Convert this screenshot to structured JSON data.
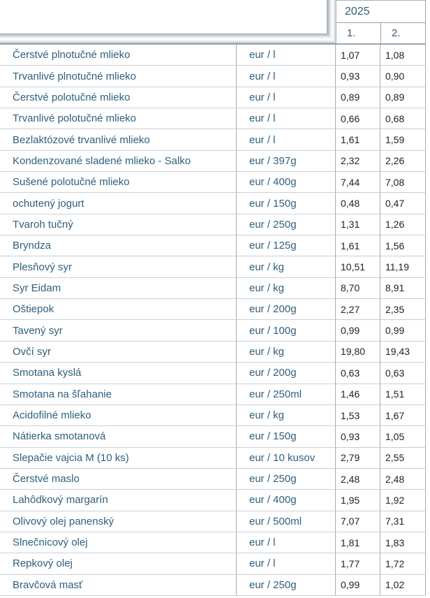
{
  "table": {
    "year_header": "2025",
    "month_headers": [
      "1.",
      "2."
    ],
    "rows": [
      {
        "name": "Čerstvé plnotučné mlieko",
        "unit": "eur / l",
        "m1": "1,07",
        "m2": "1,08"
      },
      {
        "name": "Trvanlivé plnotučné mlieko",
        "unit": "eur / l",
        "m1": "0,93",
        "m2": "0,90"
      },
      {
        "name": "Čerstvé polotučné mlieko",
        "unit": "eur / l",
        "m1": "0,89",
        "m2": "0,89"
      },
      {
        "name": "Trvanlivé polotučné mlieko",
        "unit": "eur / l",
        "m1": "0,66",
        "m2": "0,68"
      },
      {
        "name": "Bezlaktózové trvanlivé mlieko",
        "unit": "eur / l",
        "m1": "1,61",
        "m2": "1,59"
      },
      {
        "name": "Kondenzované sladené mlieko - Salko",
        "unit": "eur / 397g",
        "m1": "2,32",
        "m2": "2,26"
      },
      {
        "name": "Sušené polotučné mlieko",
        "unit": "eur / 400g",
        "m1": "7,44",
        "m2": "7,08"
      },
      {
        "name": "ochutený jogurt",
        "unit": "eur / 150g",
        "m1": "0,48",
        "m2": "0,47"
      },
      {
        "name": "Tvaroh tučný",
        "unit": "eur / 250g",
        "m1": "1,31",
        "m2": "1,26"
      },
      {
        "name": "Bryndza",
        "unit": "eur / 125g",
        "m1": "1,61",
        "m2": "1,56"
      },
      {
        "name": "Plesňový syr",
        "unit": "eur / kg",
        "m1": "10,51",
        "m2": "11,19"
      },
      {
        "name": "Syr Eidam",
        "unit": "eur / kg",
        "m1": "8,70",
        "m2": "8,91"
      },
      {
        "name": "Oštiepok",
        "unit": "eur / 200g",
        "m1": "2,27",
        "m2": "2,35"
      },
      {
        "name": "Tavený syr",
        "unit": "eur / 100g",
        "m1": "0,99",
        "m2": "0,99"
      },
      {
        "name": "Ovčí syr",
        "unit": "eur / kg",
        "m1": "19,80",
        "m2": "19,43"
      },
      {
        "name": "Smotana kyslá",
        "unit": "eur / 200g",
        "m1": "0,63",
        "m2": "0,63"
      },
      {
        "name": "Smotana na šľahanie",
        "unit": "eur / 250ml",
        "m1": "1,46",
        "m2": "1,51"
      },
      {
        "name": "Acidofilné mlieko",
        "unit": "eur / kg",
        "m1": "1,53",
        "m2": "1,67"
      },
      {
        "name": "Nátierka smotanová",
        "unit": "eur / 150g",
        "m1": "0,93",
        "m2": "1,05"
      },
      {
        "name": "Slepačie vajcia M (10 ks)",
        "unit": "eur / 10 kusov",
        "m1": "2,79",
        "m2": "2,55"
      },
      {
        "name": "Čerstvé maslo",
        "unit": "eur / 250g",
        "m1": "2,48",
        "m2": "2,48"
      },
      {
        "name": "Lahôdkový margarín",
        "unit": "eur / 400g",
        "m1": "1,95",
        "m2": "1,92"
      },
      {
        "name": "Olivový olej panenský",
        "unit": "eur / 500ml",
        "m1": "7,07",
        "m2": "7,31"
      },
      {
        "name": "Slnečnicový olej",
        "unit": "eur / l",
        "m1": "1,81",
        "m2": "1,83"
      },
      {
        "name": "Repkový olej",
        "unit": "eur / l",
        "m1": "1,77",
        "m2": "1,72"
      },
      {
        "name": "Bravčová masť",
        "unit": "eur / 250g",
        "m1": "0,99",
        "m2": "1,02"
      }
    ]
  },
  "colors": {
    "label_text": "#2e5f7d",
    "price_text": "#222222",
    "grid_border": "#9aa3a8",
    "row_separator": "#c8d1d7",
    "ridge_edge": "#9fa8ad"
  }
}
